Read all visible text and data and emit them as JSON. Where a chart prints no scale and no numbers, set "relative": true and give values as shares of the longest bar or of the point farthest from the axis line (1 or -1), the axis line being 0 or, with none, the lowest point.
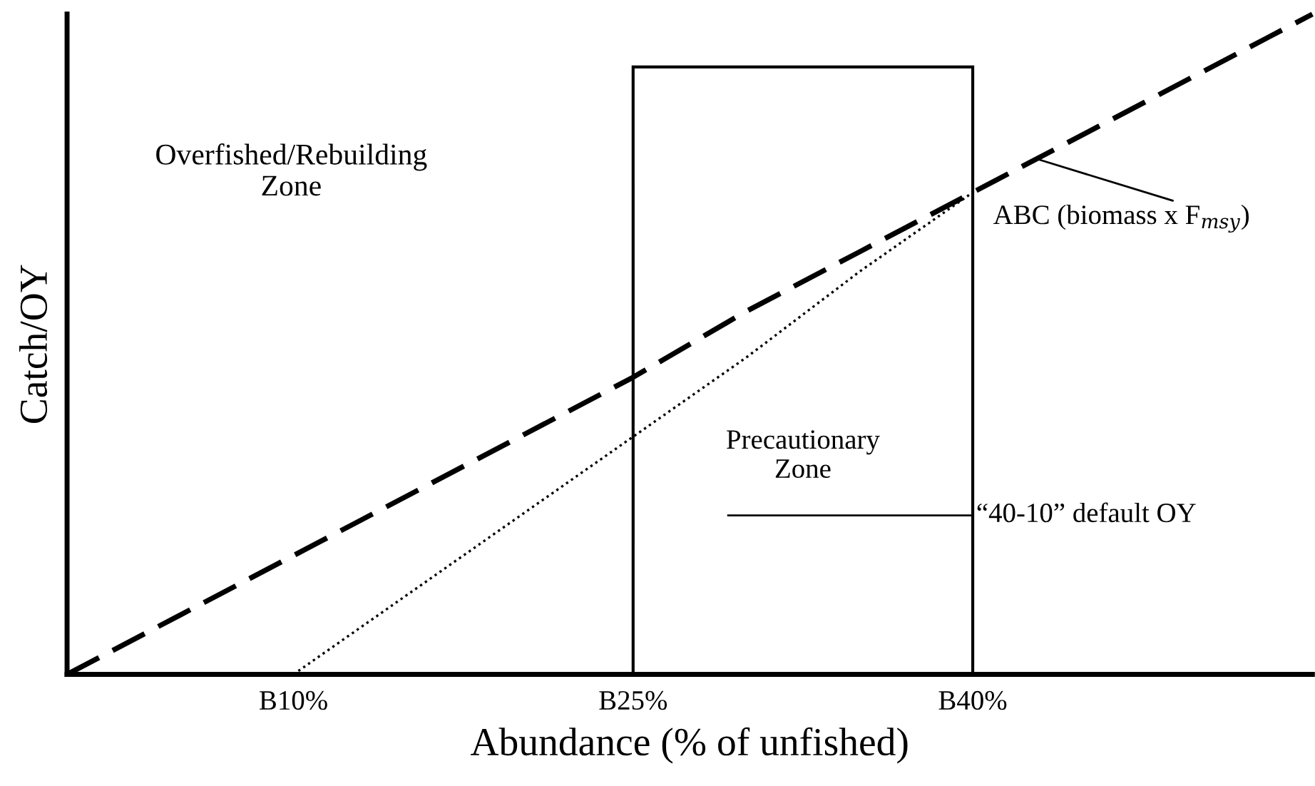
{
  "chart_data": {
    "type": "line",
    "relative": true,
    "xlabel": "Abundance (% of unfished)",
    "ylabel": "Catch/OY",
    "categories": [
      null,
      null,
      "B10%",
      null,
      null,
      "B25%",
      null,
      null,
      "B40%",
      null,
      null,
      null
    ],
    "series": [
      {
        "color": "#000000",
        "line_style": "dashed",
        "values": [
          0,
          0.09,
          0.18,
          0.27,
          0.36,
          0.45,
          0.55,
          0.64,
          0.73,
          0.82,
          0.91,
          1
        ]
      },
      {
        "color": "#000000",
        "line_style": "dotted",
        "values": [
          null,
          null,
          0,
          0.12,
          0.24,
          0.36,
          0.48,
          0.61,
          0.73,
          null,
          null,
          null
        ]
      }
    ],
    "bands": [
      {
        "axis": "x",
        "from": "B25%",
        "to": "B40%",
        "label": "Precautionary Zone",
        "color": "#ffffff"
      }
    ],
    "annotations": [
      "Overfished/Rebuilding\nZone",
      "ABC (biomass x F$_{msy}$)",
      "“40-10” default OY"
    ],
    "grid": false,
    "legend": false
  }
}
